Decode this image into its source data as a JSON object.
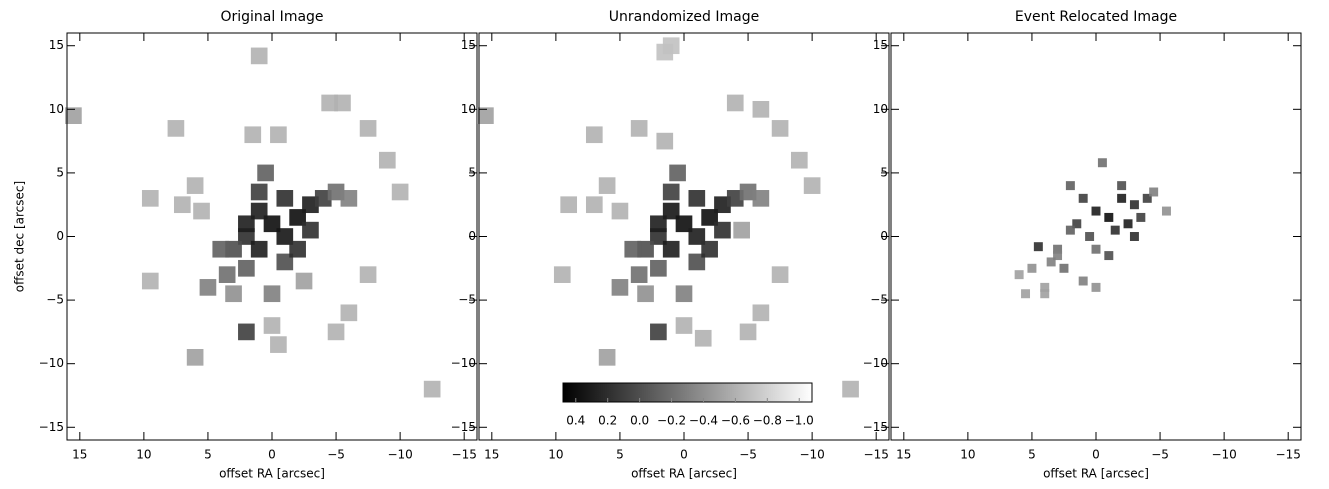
{
  "chart_data": [
    {
      "type": "image",
      "title": "Original Image",
      "xlabel": "offset RA [arcsec]",
      "ylabel": "offset dec [arcsec]",
      "xlim": [
        16,
        -16
      ],
      "ylim": [
        -16,
        16
      ],
      "xticks": [
        15,
        10,
        5,
        0,
        {
          "value": -5,
          "label": "−5"
        },
        {
          "value": -10,
          "label": "−10"
        },
        {
          "value": -15,
          "label": "−15"
        }
      ],
      "yticks": [
        {
          "value": -15,
          "label": "−15"
        },
        {
          "value": -10,
          "label": "−10"
        },
        {
          "value": -5,
          "label": "−5"
        },
        0,
        5,
        10,
        15
      ],
      "x": [
        1,
        15.5,
        7.5,
        1.5,
        -0.5,
        -4.5,
        -5.5,
        -7.5,
        -9,
        -10,
        9.5,
        6,
        7,
        5.5,
        9.5,
        -7.5,
        -2.5,
        2,
        0,
        -0.5,
        -5,
        -6,
        6,
        -12.5,
        0,
        1,
        -1,
        -2,
        -3,
        2,
        1,
        0.5,
        -4,
        -5,
        -6,
        3,
        2,
        3.5,
        4,
        5,
        3,
        -1,
        0,
        -2,
        1,
        2,
        -3,
        -1
      ],
      "y": [
        14.2,
        9.5,
        8.5,
        8,
        8,
        10.5,
        10.5,
        8.5,
        6,
        3.5,
        3,
        4,
        2.5,
        2,
        -3.5,
        -3,
        -3.5,
        -7.5,
        -7,
        -8.5,
        -7.5,
        -6,
        -9.5,
        -12,
        1,
        2,
        0,
        1.5,
        2.5,
        0,
        3.5,
        5,
        3,
        3.5,
        3,
        -1,
        -2.5,
        -3,
        -1,
        -4,
        -4.5,
        -2,
        -4.5,
        -1,
        -1,
        1,
        0.5,
        3
      ],
      "values": [
        -0.6,
        -0.5,
        -0.6,
        -0.6,
        -0.6,
        -0.6,
        -0.6,
        -0.6,
        -0.6,
        -0.6,
        -0.6,
        -0.6,
        -0.6,
        -0.6,
        -0.6,
        -0.6,
        -0.5,
        0.1,
        -0.6,
        -0.6,
        -0.6,
        -0.6,
        -0.5,
        -0.6,
        0.4,
        0.3,
        0.35,
        0.4,
        0.3,
        0.2,
        0.1,
        -0.1,
        0.1,
        -0.2,
        -0.3,
        0,
        -0.1,
        -0.2,
        -0.1,
        -0.3,
        -0.4,
        0,
        -0.3,
        0.2,
        0.3,
        0.3,
        0.2,
        0.2
      ]
    },
    {
      "type": "image",
      "title": "Unrandomized Image",
      "xlabel": "offset RA [arcsec]",
      "xlim": [
        16,
        -16
      ],
      "ylim": [
        -16,
        16
      ],
      "xticks": [
        15,
        10,
        5,
        0,
        {
          "value": -5,
          "label": "−5"
        },
        {
          "value": -10,
          "label": "−10"
        },
        {
          "value": -15,
          "label": "−15"
        }
      ],
      "yticks": [
        {
          "value": -15,
          "label": "−15"
        },
        {
          "value": -10,
          "label": "−10"
        },
        {
          "value": -5,
          "label": "−5"
        },
        0,
        5,
        10,
        15
      ],
      "x": [
        1.5,
        1,
        15.5,
        7,
        3.5,
        1.5,
        -4,
        -6,
        -7.5,
        -9,
        -10,
        9,
        6,
        7,
        5,
        9.5,
        -7.5,
        -4.5,
        2,
        0,
        -1.5,
        -5,
        -6,
        6,
        -13,
        0,
        1,
        -1,
        -2,
        -3,
        2,
        1,
        0.5,
        -4,
        -5,
        -6,
        3,
        2,
        3.5,
        4,
        5,
        3,
        -1,
        0,
        -2,
        1,
        2,
        -3,
        -1
      ],
      "y": [
        14.5,
        15,
        9.5,
        8,
        8.5,
        7.5,
        10.5,
        10,
        8.5,
        6,
        4,
        2.5,
        4,
        2.5,
        2,
        -3,
        -3,
        0.5,
        -7.5,
        -7,
        -8,
        -7.5,
        -6,
        -9.5,
        -12,
        1,
        2,
        0,
        1.5,
        2.5,
        0,
        3.5,
        5,
        3,
        3.5,
        3,
        -1,
        -2.5,
        -3,
        -1,
        -4,
        -4.5,
        -2,
        -4.5,
        -1,
        -1,
        1,
        0.5,
        3
      ],
      "values": [
        -0.7,
        -0.7,
        -0.5,
        -0.6,
        -0.6,
        -0.6,
        -0.6,
        -0.6,
        -0.6,
        -0.6,
        -0.6,
        -0.6,
        -0.6,
        -0.6,
        -0.6,
        -0.6,
        -0.6,
        -0.5,
        0.1,
        -0.6,
        -0.6,
        -0.6,
        -0.6,
        -0.5,
        -0.6,
        0.4,
        0.35,
        0.3,
        0.4,
        0.3,
        0.2,
        0.1,
        -0.1,
        0.1,
        -0.2,
        -0.3,
        0,
        -0.1,
        -0.2,
        -0.1,
        -0.3,
        -0.4,
        0,
        -0.3,
        0.2,
        0.3,
        0.3,
        0.2,
        0.2
      ],
      "colorbar": {
        "clim": [
          0.48,
          -1.08
        ],
        "ticks": [
          0.4,
          0.2,
          {
            "value": 0,
            "label": "0.0"
          },
          {
            "value": -0.2,
            "label": "−0.2"
          },
          {
            "value": -0.4,
            "label": "−0.4"
          },
          {
            "value": -0.6,
            "label": "−0.6"
          },
          {
            "value": -0.8,
            "label": "−0.8"
          },
          {
            "value": -1.0,
            "label": "−1.0"
          }
        ]
      }
    },
    {
      "type": "image",
      "title": "Event Relocated Image",
      "xlabel": "offset RA [arcsec]",
      "xlim": [
        16,
        -16
      ],
      "ylim": [
        -16,
        16
      ],
      "xticks": [
        15,
        10,
        5,
        0,
        {
          "value": -5,
          "label": "−5"
        },
        {
          "value": -10,
          "label": "−10"
        },
        {
          "value": -15,
          "label": "−15"
        }
      ],
      "yticks": [
        {
          "value": -15,
          "label": "−15"
        },
        {
          "value": -10,
          "label": "−10"
        },
        {
          "value": -5,
          "label": "−5"
        },
        0,
        5,
        10,
        15
      ],
      "x": [
        0,
        1,
        -1,
        -2,
        -3,
        -4,
        -1.5,
        -2.5,
        -3.5,
        0.5,
        1.5,
        2,
        3,
        4.5,
        3.5,
        2.5,
        5,
        6,
        4,
        1,
        0,
        -0.5,
        -4.5,
        -5.5,
        -1,
        0,
        -2,
        2,
        3,
        5.5,
        4,
        -3
      ],
      "y": [
        2,
        3,
        1.5,
        3,
        2.5,
        3,
        0.5,
        1,
        1.5,
        0,
        1,
        0.5,
        -1,
        -0.8,
        -2,
        -2.5,
        -2.5,
        -3,
        -4,
        -3.5,
        -4,
        5.8,
        3.5,
        2,
        -1.5,
        -1,
        4,
        4,
        -1.5,
        -4.5,
        -4.5,
        0
      ],
      "values": [
        0.3,
        0.1,
        0.4,
        0.3,
        0.2,
        0.1,
        0.2,
        0.3,
        0.1,
        0,
        0.1,
        -0.1,
        -0.2,
        0.2,
        -0.3,
        -0.2,
        -0.4,
        -0.5,
        -0.5,
        -0.3,
        -0.4,
        -0.2,
        -0.3,
        -0.4,
        0,
        -0.2,
        0,
        -0.1,
        -0.3,
        -0.5,
        -0.5,
        0.2
      ]
    }
  ]
}
